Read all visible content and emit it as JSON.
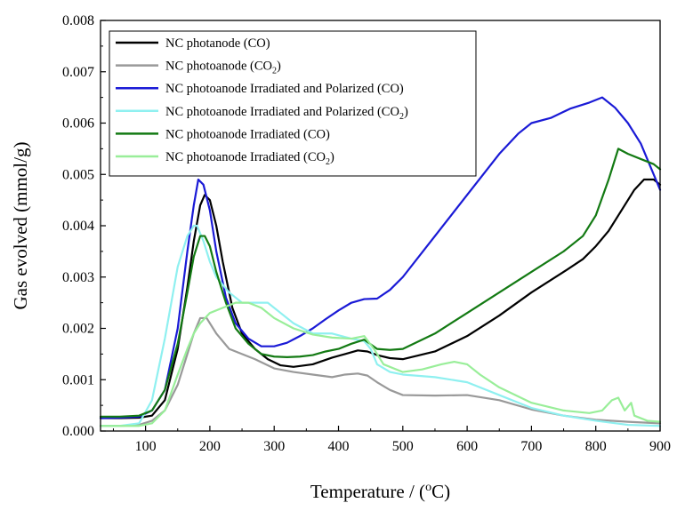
{
  "chart_data": {
    "type": "line",
    "title": "",
    "xlabel": "Temperature / (",
    "xlabel_super": "o",
    "xlabel_tail": "C)",
    "ylabel": "Gas evolved (mmol/g)",
    "xlim": [
      30,
      900
    ],
    "ylim": [
      0,
      0.008
    ],
    "grid": false,
    "legend_position": "top-left",
    "x_ticks": [
      100,
      200,
      300,
      400,
      500,
      600,
      700,
      800,
      900
    ],
    "x_tick_labels": [
      "100",
      "200",
      "300",
      "400",
      "500",
      "600",
      "700",
      "800",
      "900"
    ],
    "y_ticks": [
      0,
      0.001,
      0.002,
      0.003,
      0.004,
      0.005,
      0.006,
      0.007,
      0.008
    ],
    "y_tick_labels": [
      "0.000",
      "0.001",
      "0.002",
      "0.003",
      "0.004",
      "0.005",
      "0.006",
      "0.007",
      "0.008"
    ],
    "series": [
      {
        "name": "NC photanode (CO)",
        "label_main": "NC photanode (CO)",
        "label_sub": "",
        "label_tail": "",
        "color": "#000000",
        "x": [
          30,
          60,
          90,
          110,
          130,
          150,
          165,
          175,
          185,
          192,
          200,
          210,
          220,
          235,
          250,
          270,
          290,
          310,
          330,
          360,
          390,
          410,
          430,
          445,
          460,
          480,
          500,
          550,
          600,
          650,
          700,
          750,
          780,
          800,
          820,
          840,
          860,
          875,
          890,
          900
        ],
        "y": [
          0.00025,
          0.00025,
          0.00026,
          0.0003,
          0.0006,
          0.0016,
          0.0028,
          0.0037,
          0.0044,
          0.0046,
          0.0045,
          0.004,
          0.0033,
          0.0024,
          0.0019,
          0.0016,
          0.0014,
          0.00128,
          0.00125,
          0.0013,
          0.00143,
          0.0015,
          0.00157,
          0.00155,
          0.00148,
          0.00142,
          0.0014,
          0.00155,
          0.00185,
          0.00225,
          0.0027,
          0.0031,
          0.00335,
          0.0036,
          0.0039,
          0.0043,
          0.0047,
          0.0049,
          0.0049,
          0.0048
        ]
      },
      {
        "name": "NC photoanode (CO2)",
        "label_main": "NC photoanode (CO",
        "label_sub": "2",
        "label_tail": ")",
        "color": "#999999",
        "x": [
          30,
          60,
          90,
          110,
          130,
          150,
          165,
          175,
          185,
          195,
          210,
          230,
          250,
          270,
          300,
          330,
          360,
          390,
          410,
          430,
          445,
          460,
          480,
          500,
          550,
          600,
          650,
          700,
          750,
          800,
          850,
          900
        ],
        "y": [
          0.0001,
          0.0001,
          0.00012,
          0.0002,
          0.0004,
          0.0009,
          0.0015,
          0.0019,
          0.0022,
          0.0022,
          0.0019,
          0.0016,
          0.0015,
          0.0014,
          0.00122,
          0.00115,
          0.0011,
          0.00105,
          0.0011,
          0.00112,
          0.00108,
          0.00095,
          0.0008,
          0.0007,
          0.00069,
          0.0007,
          0.0006,
          0.00042,
          0.0003,
          0.00022,
          0.00018,
          0.00015
        ]
      },
      {
        "name": "NC photoanode Irradiated and Polarized (CO)",
        "label_main": "NC photoanode Irradiated and Polarized (CO)",
        "label_sub": "",
        "label_tail": "",
        "color": "#1a1ad6",
        "x": [
          30,
          60,
          90,
          110,
          130,
          150,
          165,
          175,
          182,
          190,
          200,
          210,
          225,
          240,
          260,
          280,
          300,
          320,
          340,
          360,
          380,
          400,
          420,
          440,
          460,
          480,
          500,
          550,
          600,
          650,
          680,
          700,
          730,
          760,
          790,
          810,
          830,
          850,
          870,
          890,
          900
        ],
        "y": [
          0.00025,
          0.00026,
          0.00028,
          0.0004,
          0.0008,
          0.002,
          0.0035,
          0.0044,
          0.0049,
          0.0048,
          0.0043,
          0.0035,
          0.0026,
          0.0021,
          0.0018,
          0.00165,
          0.00165,
          0.00172,
          0.00185,
          0.002,
          0.00218,
          0.00235,
          0.0025,
          0.00257,
          0.00258,
          0.00275,
          0.003,
          0.0038,
          0.0046,
          0.0054,
          0.0058,
          0.006,
          0.0061,
          0.00628,
          0.0064,
          0.0065,
          0.0063,
          0.006,
          0.0056,
          0.005,
          0.0047
        ]
      },
      {
        "name": "NC photoanode Irradiated and Polarized (CO2)",
        "label_main": "NC photoanode Irradiated and Polarized (CO",
        "label_sub": "2",
        "label_tail": ")",
        "color": "#8ff0f0",
        "x": [
          30,
          60,
          90,
          110,
          130,
          150,
          165,
          175,
          180,
          190,
          200,
          210,
          230,
          250,
          270,
          290,
          310,
          330,
          360,
          390,
          420,
          440,
          450,
          460,
          480,
          500,
          550,
          600,
          650,
          700,
          750,
          800,
          850,
          900
        ],
        "y": [
          0.0001,
          0.0001,
          0.00015,
          0.0006,
          0.0018,
          0.0032,
          0.0038,
          0.004,
          0.004,
          0.0037,
          0.0033,
          0.003,
          0.0027,
          0.0025,
          0.0025,
          0.0025,
          0.0023,
          0.0021,
          0.0019,
          0.0019,
          0.0018,
          0.00175,
          0.0016,
          0.0013,
          0.00115,
          0.0011,
          0.00105,
          0.00095,
          0.0007,
          0.00045,
          0.0003,
          0.0002,
          0.00012,
          0.0001
        ]
      },
      {
        "name": "NC photoanode Irradiated (CO)",
        "label_main": "NC photoanode Irradiated (CO)",
        "label_sub": "",
        "label_tail": "",
        "color": "#137a13",
        "x": [
          30,
          60,
          90,
          110,
          130,
          150,
          165,
          175,
          185,
          192,
          200,
          210,
          225,
          240,
          260,
          280,
          300,
          320,
          340,
          360,
          380,
          400,
          420,
          440,
          460,
          480,
          500,
          550,
          600,
          650,
          700,
          750,
          780,
          800,
          820,
          835,
          850,
          870,
          890,
          900
        ],
        "y": [
          0.00028,
          0.00028,
          0.0003,
          0.0004,
          0.0008,
          0.0017,
          0.0027,
          0.0034,
          0.0038,
          0.0038,
          0.0036,
          0.0031,
          0.0025,
          0.002,
          0.0017,
          0.0015,
          0.00145,
          0.00144,
          0.00145,
          0.00148,
          0.00155,
          0.0016,
          0.0017,
          0.00178,
          0.0016,
          0.00158,
          0.0016,
          0.0019,
          0.0023,
          0.0027,
          0.0031,
          0.0035,
          0.0038,
          0.0042,
          0.0049,
          0.0055,
          0.0054,
          0.0053,
          0.0052,
          0.0051
        ]
      },
      {
        "name": "NC photoanode Irradiated (CO2)",
        "label_main": "NC photoanode Irradiated (CO",
        "label_sub": "2",
        "label_tail": ")",
        "color": "#99ee99",
        "x": [
          30,
          60,
          90,
          110,
          130,
          150,
          165,
          175,
          185,
          200,
          220,
          240,
          260,
          280,
          300,
          330,
          360,
          390,
          420,
          440,
          455,
          470,
          500,
          530,
          560,
          580,
          600,
          620,
          650,
          700,
          750,
          790,
          810,
          825,
          835,
          845,
          855,
          860,
          870,
          880,
          900
        ],
        "y": [
          0.0001,
          0.0001,
          0.0001,
          0.00015,
          0.0004,
          0.0011,
          0.0016,
          0.0019,
          0.0021,
          0.0023,
          0.0024,
          0.0025,
          0.0025,
          0.0024,
          0.0022,
          0.002,
          0.00188,
          0.00182,
          0.0018,
          0.00185,
          0.0016,
          0.0013,
          0.00115,
          0.0012,
          0.0013,
          0.00135,
          0.0013,
          0.0011,
          0.00085,
          0.00055,
          0.0004,
          0.00035,
          0.0004,
          0.0006,
          0.00065,
          0.0004,
          0.00055,
          0.0003,
          0.00025,
          0.0002,
          0.00018
        ]
      }
    ]
  }
}
